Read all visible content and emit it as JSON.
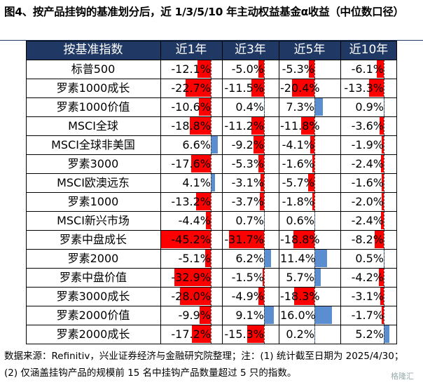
{
  "title": "图4、按产品挂钩的基准划分后，近 1/3/5/10 年主动权益基金α收益（中位数口径）",
  "footer": {
    "line1": "数据来源：Refinitiv，兴业证券经济与金融研究院整理；注：(1) 统计截至日期为 2025/4/30；",
    "line2": "(2) 仅涵盖挂钩产品的规模前 15 名中挂钩产品数量超过 5 只的指数。"
  },
  "watermark": "格隆汇",
  "colors": {
    "header_bg": "#1f3864",
    "negative": "#ff0000",
    "positive": "#5b8ed0"
  },
  "chart_data": {
    "type": "table",
    "units": "%",
    "columns": [
      "按基准指数",
      "近1年",
      "近3年",
      "近5年",
      "近10年"
    ],
    "rows": [
      {
        "label": "标普500",
        "values": [
          -12.1,
          -5.0,
          -5.3,
          -6.1
        ]
      },
      {
        "label": "罗素1000成长",
        "values": [
          -22.7,
          -11.5,
          -20.4,
          -13.3
        ]
      },
      {
        "label": "罗素1000价值",
        "values": [
          -10.6,
          0.4,
          7.3,
          0.9
        ]
      },
      {
        "label": "MSCI全球",
        "values": [
          -18.8,
          -11.2,
          -11.8,
          -3.6
        ]
      },
      {
        "label": "MSCI全球非美国",
        "values": [
          6.6,
          -9.2,
          -4.1,
          -1.9
        ]
      },
      {
        "label": "罗素3000",
        "values": [
          -17.6,
          -5.3,
          -1.6,
          -2.4
        ]
      },
      {
        "label": "MSCI欧澳远东",
        "values": [
          4.1,
          -3.1,
          -5.7,
          -1.6
        ]
      },
      {
        "label": "罗素1000",
        "values": [
          -13.2,
          -3.7,
          -1.8,
          -2.0
        ]
      },
      {
        "label": "MSCI新兴市场",
        "values": [
          -4.4,
          0.7,
          0.6,
          -2.4
        ]
      },
      {
        "label": "罗素中盘成长",
        "values": [
          -45.2,
          -31.7,
          -18.8,
          -8.2
        ]
      },
      {
        "label": "罗素2000",
        "values": [
          -5.1,
          6.2,
          11.4,
          0.5
        ]
      },
      {
        "label": "罗素中盘价值",
        "values": [
          -32.9,
          -1.5,
          5.7,
          -4.2
        ]
      },
      {
        "label": "罗素3000成长",
        "values": [
          -28.0,
          -4.9,
          -18.3,
          -3.1
        ]
      },
      {
        "label": "罗素2000价值",
        "values": [
          -9.9,
          9.1,
          16.0,
          -1.7
        ]
      },
      {
        "label": "罗素2000成长",
        "values": [
          -17.2,
          -15.3,
          0.2,
          5.2
        ]
      }
    ]
  }
}
